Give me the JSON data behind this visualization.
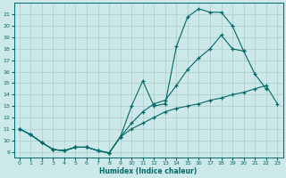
{
  "xlabel": "Humidex (Indice chaleur)",
  "bg_color": "#cce8e8",
  "grid_color": "#aacccc",
  "line_color": "#006868",
  "xlim": [
    -0.5,
    23.5
  ],
  "ylim": [
    8.5,
    22.0
  ],
  "xticks": [
    0,
    1,
    2,
    3,
    4,
    5,
    6,
    7,
    8,
    9,
    10,
    11,
    12,
    13,
    14,
    15,
    16,
    17,
    18,
    19,
    20,
    21,
    22,
    23
  ],
  "yticks": [
    9,
    10,
    11,
    12,
    13,
    14,
    15,
    16,
    17,
    18,
    19,
    20,
    21
  ],
  "c1x": [
    0,
    1,
    2,
    3,
    4,
    5,
    6,
    7,
    8,
    9,
    10,
    11,
    12,
    13,
    14,
    15,
    16,
    17,
    18,
    19,
    20
  ],
  "c1y": [
    11,
    10.5,
    9.8,
    9.2,
    9.1,
    9.4,
    9.4,
    9.1,
    8.9,
    10.3,
    13.0,
    15.2,
    13.0,
    13.2,
    18.2,
    20.8,
    21.5,
    21.2,
    21.2,
    20.0,
    17.8
  ],
  "c2x": [
    0,
    1,
    2,
    3,
    4,
    5,
    6,
    7,
    8,
    9,
    10,
    11,
    12,
    13,
    14,
    15,
    16,
    17,
    18,
    19,
    20,
    21,
    22
  ],
  "c2y": [
    11,
    10.5,
    9.8,
    9.2,
    9.1,
    9.4,
    9.4,
    9.1,
    8.9,
    10.3,
    11.5,
    12.5,
    13.2,
    13.5,
    14.8,
    16.2,
    17.2,
    18.0,
    19.2,
    18.0,
    17.8,
    15.8,
    14.5
  ],
  "c3x": [
    0,
    1,
    2,
    3,
    4,
    5,
    6,
    7,
    8,
    9,
    10,
    11,
    12,
    13,
    14,
    15,
    16,
    17,
    18,
    19,
    20,
    21,
    22,
    23
  ],
  "c3y": [
    11,
    10.5,
    9.8,
    9.2,
    9.1,
    9.4,
    9.4,
    9.1,
    8.9,
    10.3,
    11.0,
    11.5,
    12.0,
    12.5,
    12.8,
    13.0,
    13.2,
    13.5,
    13.7,
    14.0,
    14.2,
    14.5,
    14.8,
    13.2
  ]
}
